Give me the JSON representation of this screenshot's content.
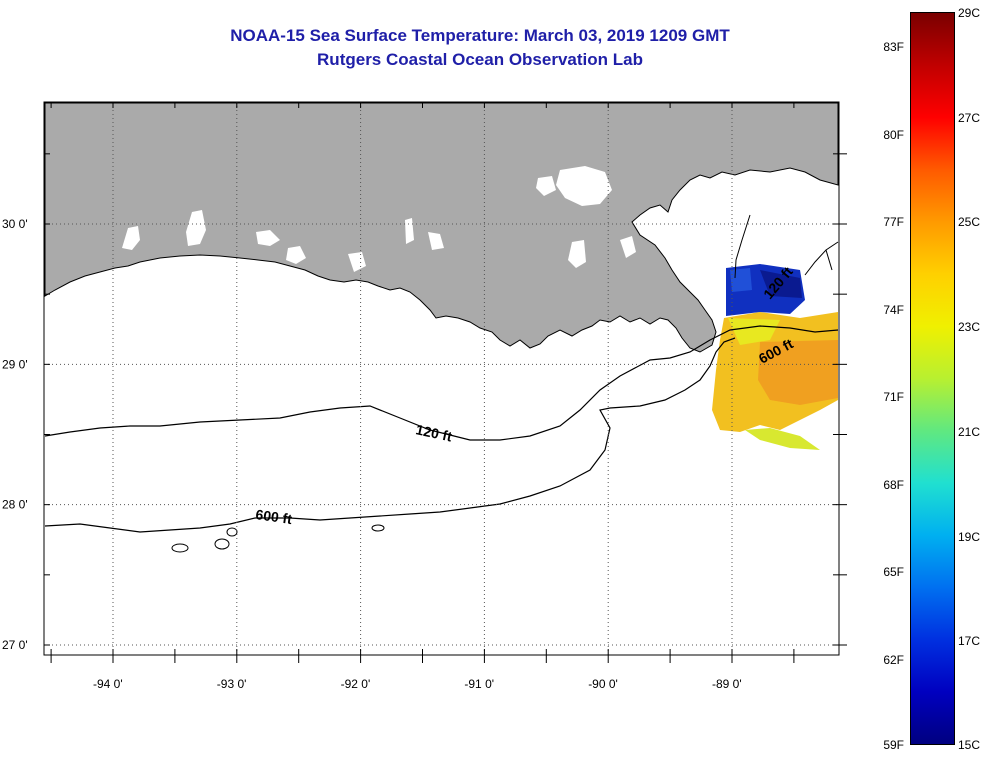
{
  "header": {
    "title": "NOAA-15 Sea Surface Temperature:  March 03, 2019 1209 GMT",
    "subtitle": "Rutgers Coastal Ocean Observation Lab"
  },
  "map": {
    "lat_labels": [
      "30 0'",
      "29 0'",
      "28 0'",
      "27 0'"
    ],
    "lon_labels": [
      "-94 0'",
      "-93 0'",
      "-92 0'",
      "-91 0'",
      "-90 0'",
      "-89 0'"
    ],
    "lat_values": [
      30,
      29,
      28,
      27
    ],
    "lon_values": [
      -94,
      -93,
      -92,
      -91,
      -90,
      -89
    ],
    "contour_labels": {
      "shelf_120": "120 ft",
      "deep_600": "600 ft",
      "east_600": "600 ft",
      "north_120": "120 ft"
    },
    "colors": {
      "land": "#aaaaaa",
      "water": "#ffffff",
      "grid": "#555555"
    }
  },
  "colorbar": {
    "fahrenheit_labels": [
      "83F",
      "80F",
      "77F",
      "74F",
      "71F",
      "68F",
      "65F",
      "62F",
      "59F"
    ],
    "celsius_labels": [
      "29C",
      "27C",
      "25C",
      "23C",
      "21C",
      "19C",
      "17C",
      "15C"
    ],
    "range_c": [
      15,
      29
    ],
    "colormap": "jet"
  }
}
